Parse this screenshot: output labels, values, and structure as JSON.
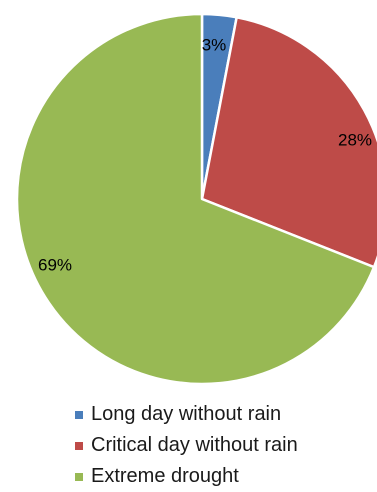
{
  "chart_data": {
    "type": "pie",
    "title": "",
    "slices": [
      {
        "label": "Long day without rain",
        "value": 3,
        "value_label": "3%",
        "color": "#4A7EBB"
      },
      {
        "label": "Critical day without rain",
        "value": 28,
        "value_label": "28%",
        "color": "#BE4B48"
      },
      {
        "label": "Extreme drought",
        "value": 69,
        "value_label": "69%",
        "color": "#98B954"
      }
    ],
    "legend_position": "bottom",
    "start_angle": "12 o'clock",
    "direction": "clockwise"
  }
}
